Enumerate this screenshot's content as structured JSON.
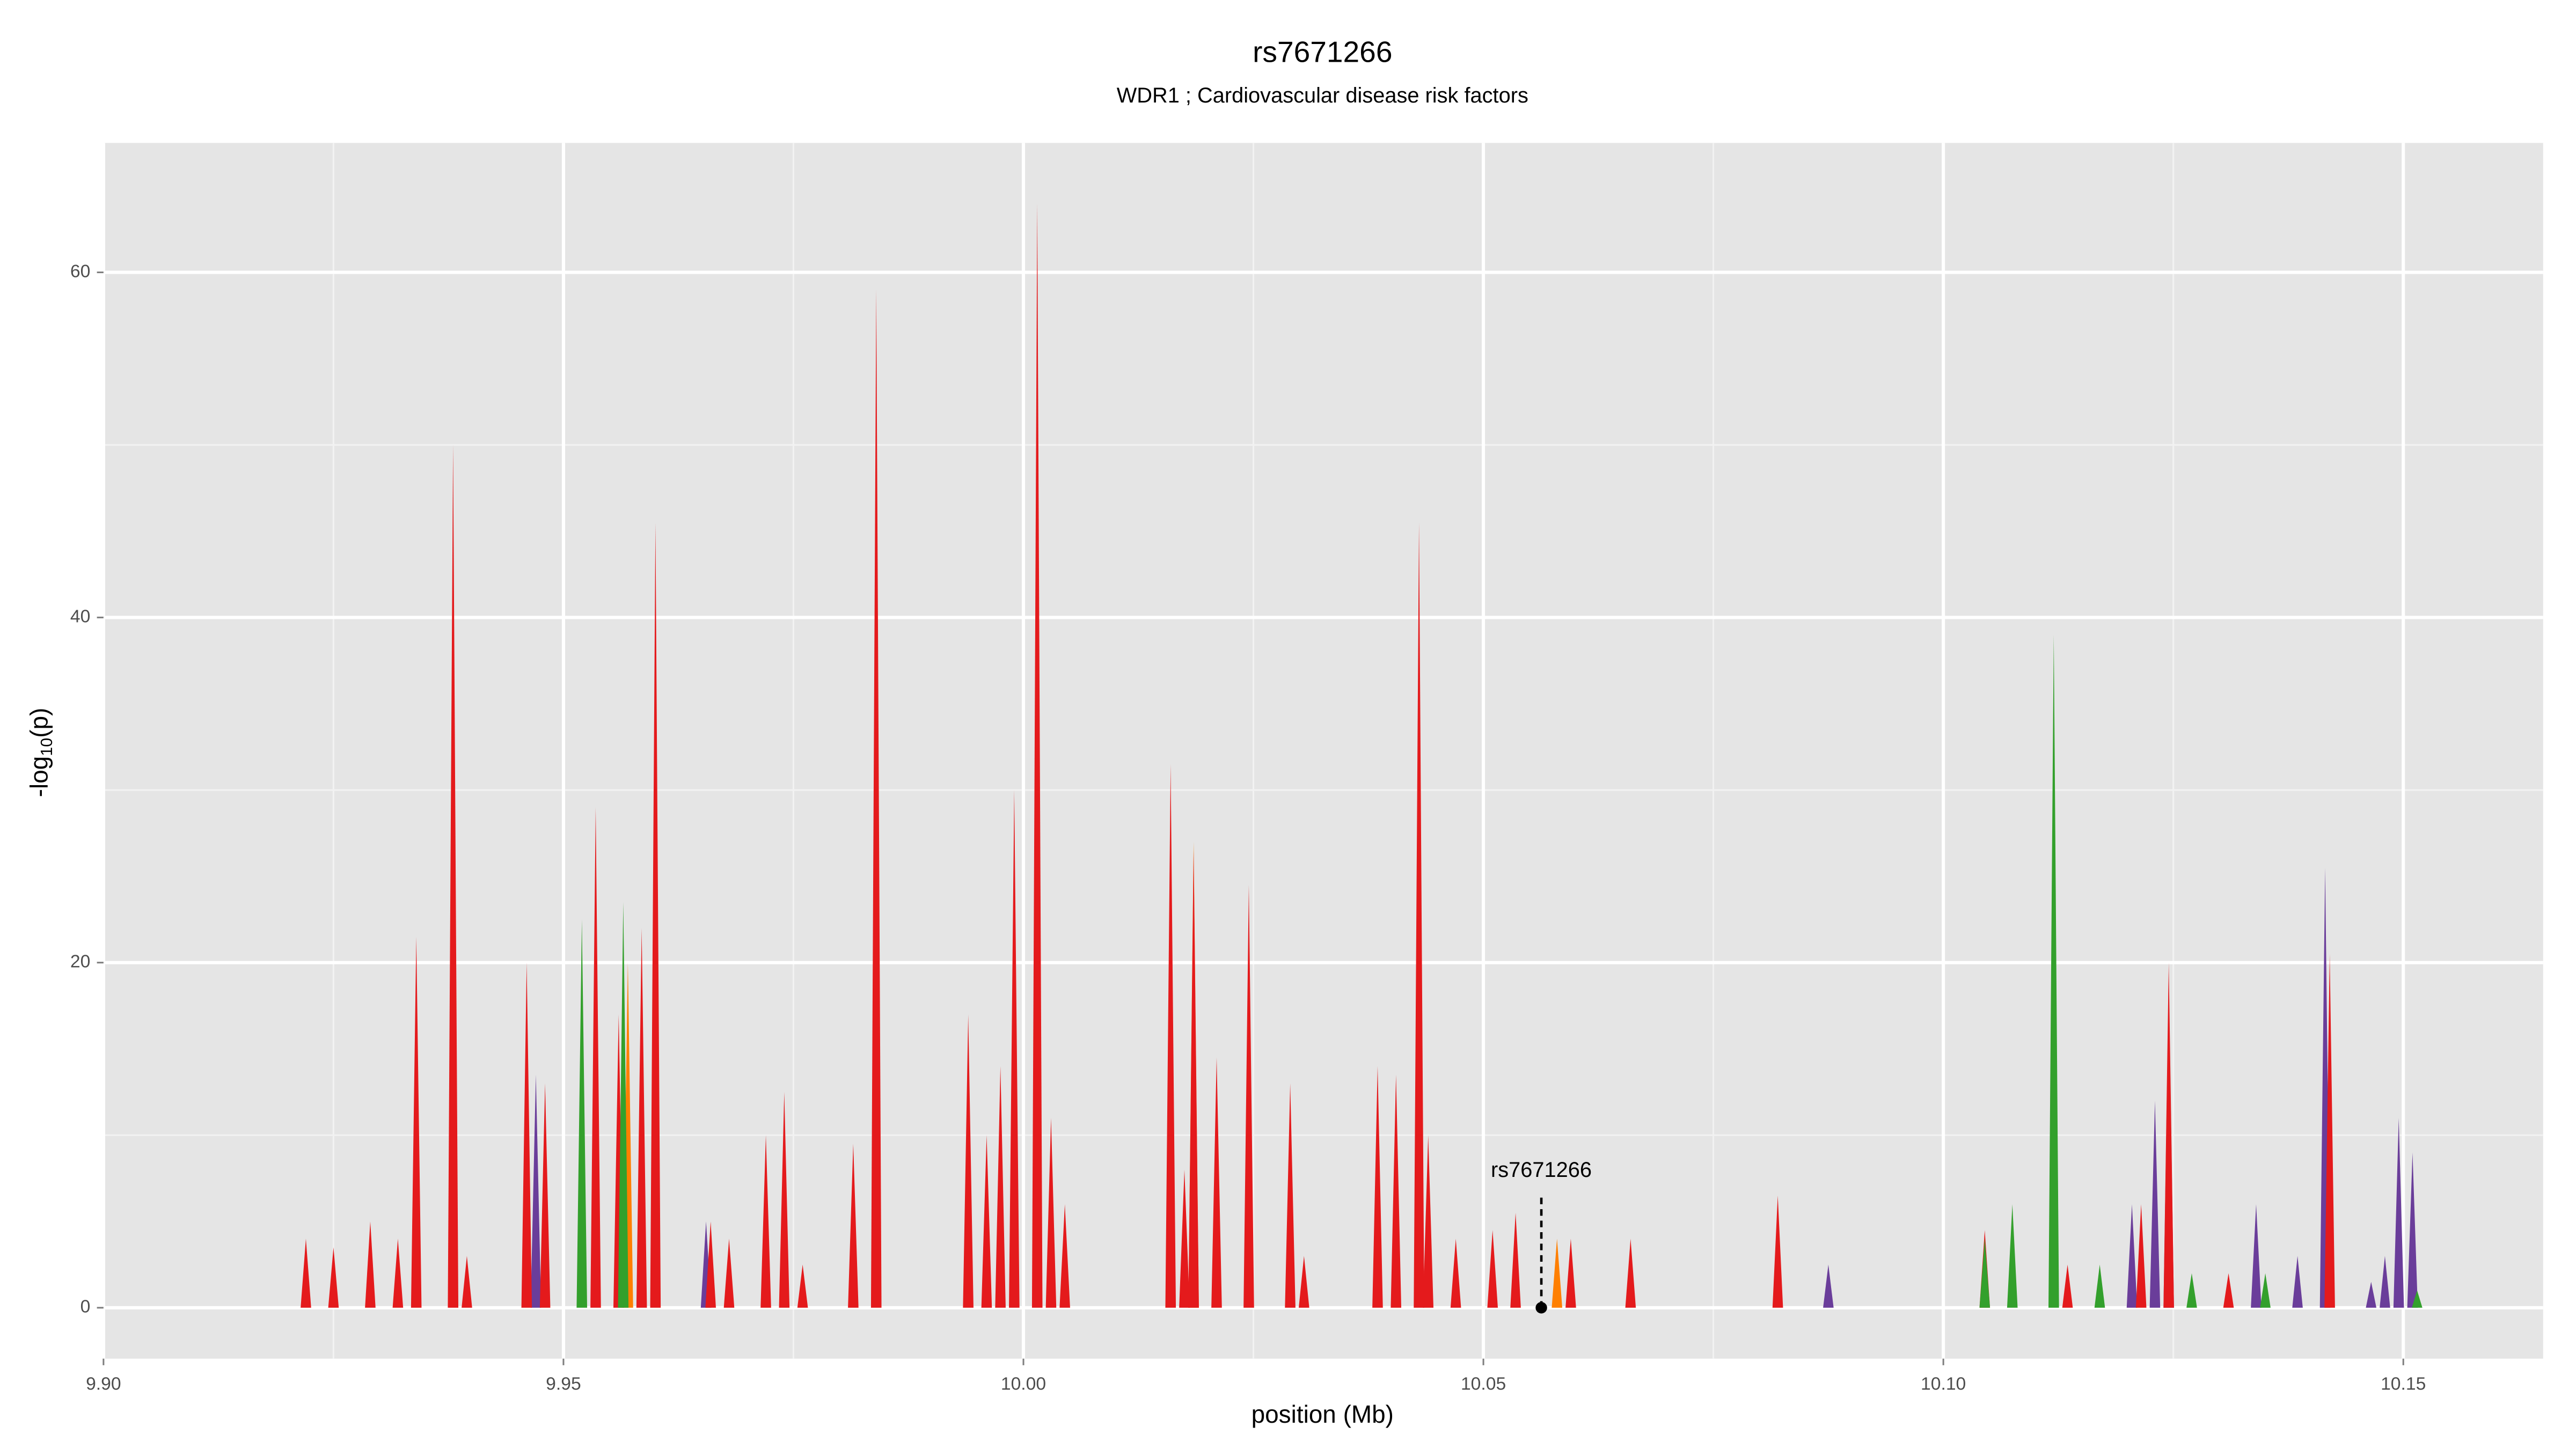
{
  "chart_data": {
    "type": "spike",
    "title": "rs7671266",
    "subtitle": "WDR1 ; Cardiovascular disease risk factors",
    "xlabel": "position (Mb)",
    "ylabel": {
      "prefix": "-log",
      "subscript": "10",
      "suffix": "(p)"
    },
    "xlim": [
      9.9,
      10.1652
    ],
    "ylim": [
      -2.95,
      67.5
    ],
    "xticks": [
      {
        "value": 9.9,
        "label": "9.90"
      },
      9.95,
      {
        "value": 10.0,
        "label": "10.00"
      },
      10.05,
      {
        "value": 10.1,
        "label": "10.10"
      },
      10.15
    ],
    "yticks": [
      0,
      20,
      40,
      60
    ],
    "xminorticks": [
      9.925,
      9.975,
      10.025,
      10.075,
      10.125
    ],
    "yminorticks": [
      10,
      30,
      50
    ],
    "grid": true,
    "annotation": {
      "text": "rs7671266",
      "x": 10.0563,
      "y": 0
    },
    "series": [
      {
        "name": "orange",
        "color": "#ff7f00",
        "x": [
          9.957,
          10.0185,
          10.058
        ],
        "values": [
          20,
          27,
          4
        ]
      },
      {
        "name": "purple",
        "color": "#6a3d9a",
        "x": [
          9.947,
          9.9655,
          10.0875,
          10.1205,
          10.123,
          10.1245,
          10.134,
          10.1385,
          10.1415,
          10.1465,
          10.148,
          10.1495,
          10.151
        ],
        "values": [
          13.5,
          5,
          2.5,
          6,
          12,
          19,
          6,
          3,
          25.5,
          1.5,
          3,
          11,
          9
        ]
      },
      {
        "name": "red",
        "color": "#e41a1c",
        "x": [
          9.922,
          9.925,
          9.929,
          9.932,
          9.934,
          9.938,
          9.9395,
          9.946,
          9.948,
          9.9535,
          9.956,
          9.9585,
          9.96,
          9.966,
          9.968,
          9.972,
          9.974,
          9.976,
          9.9815,
          9.984,
          9.994,
          9.996,
          9.9975,
          9.999,
          10.0015,
          10.003,
          10.0045,
          10.016,
          10.0175,
          10.0185,
          10.021,
          10.0245,
          10.029,
          10.0305,
          10.0385,
          10.0405,
          10.043,
          10.044,
          10.047,
          10.051,
          10.0535,
          10.0595,
          10.066,
          10.082,
          10.1045,
          10.1135,
          10.1215,
          10.1245,
          10.131,
          10.142
        ],
        "values": [
          4,
          3.5,
          5,
          4,
          21.5,
          50,
          3,
          20,
          13,
          29,
          17,
          22,
          45.5,
          5,
          4,
          10,
          12.5,
          2.5,
          9.5,
          59,
          17,
          10,
          14,
          30,
          64,
          11,
          6,
          31.5,
          8,
          26.5,
          14.5,
          24.5,
          13,
          3,
          14,
          13.5,
          45.5,
          10,
          4,
          4.5,
          5.5,
          4,
          4,
          6.5,
          4.5,
          2.5,
          6,
          20,
          2,
          20.5
        ]
      },
      {
        "name": "green",
        "color": "#33a02c",
        "x": [
          9.952,
          9.9565,
          10.1045,
          10.1075,
          10.112,
          10.117,
          10.127,
          10.135,
          10.1515
        ],
        "values": [
          22.5,
          23.5,
          4,
          6,
          39,
          2.5,
          2,
          2,
          1
        ]
      }
    ]
  }
}
